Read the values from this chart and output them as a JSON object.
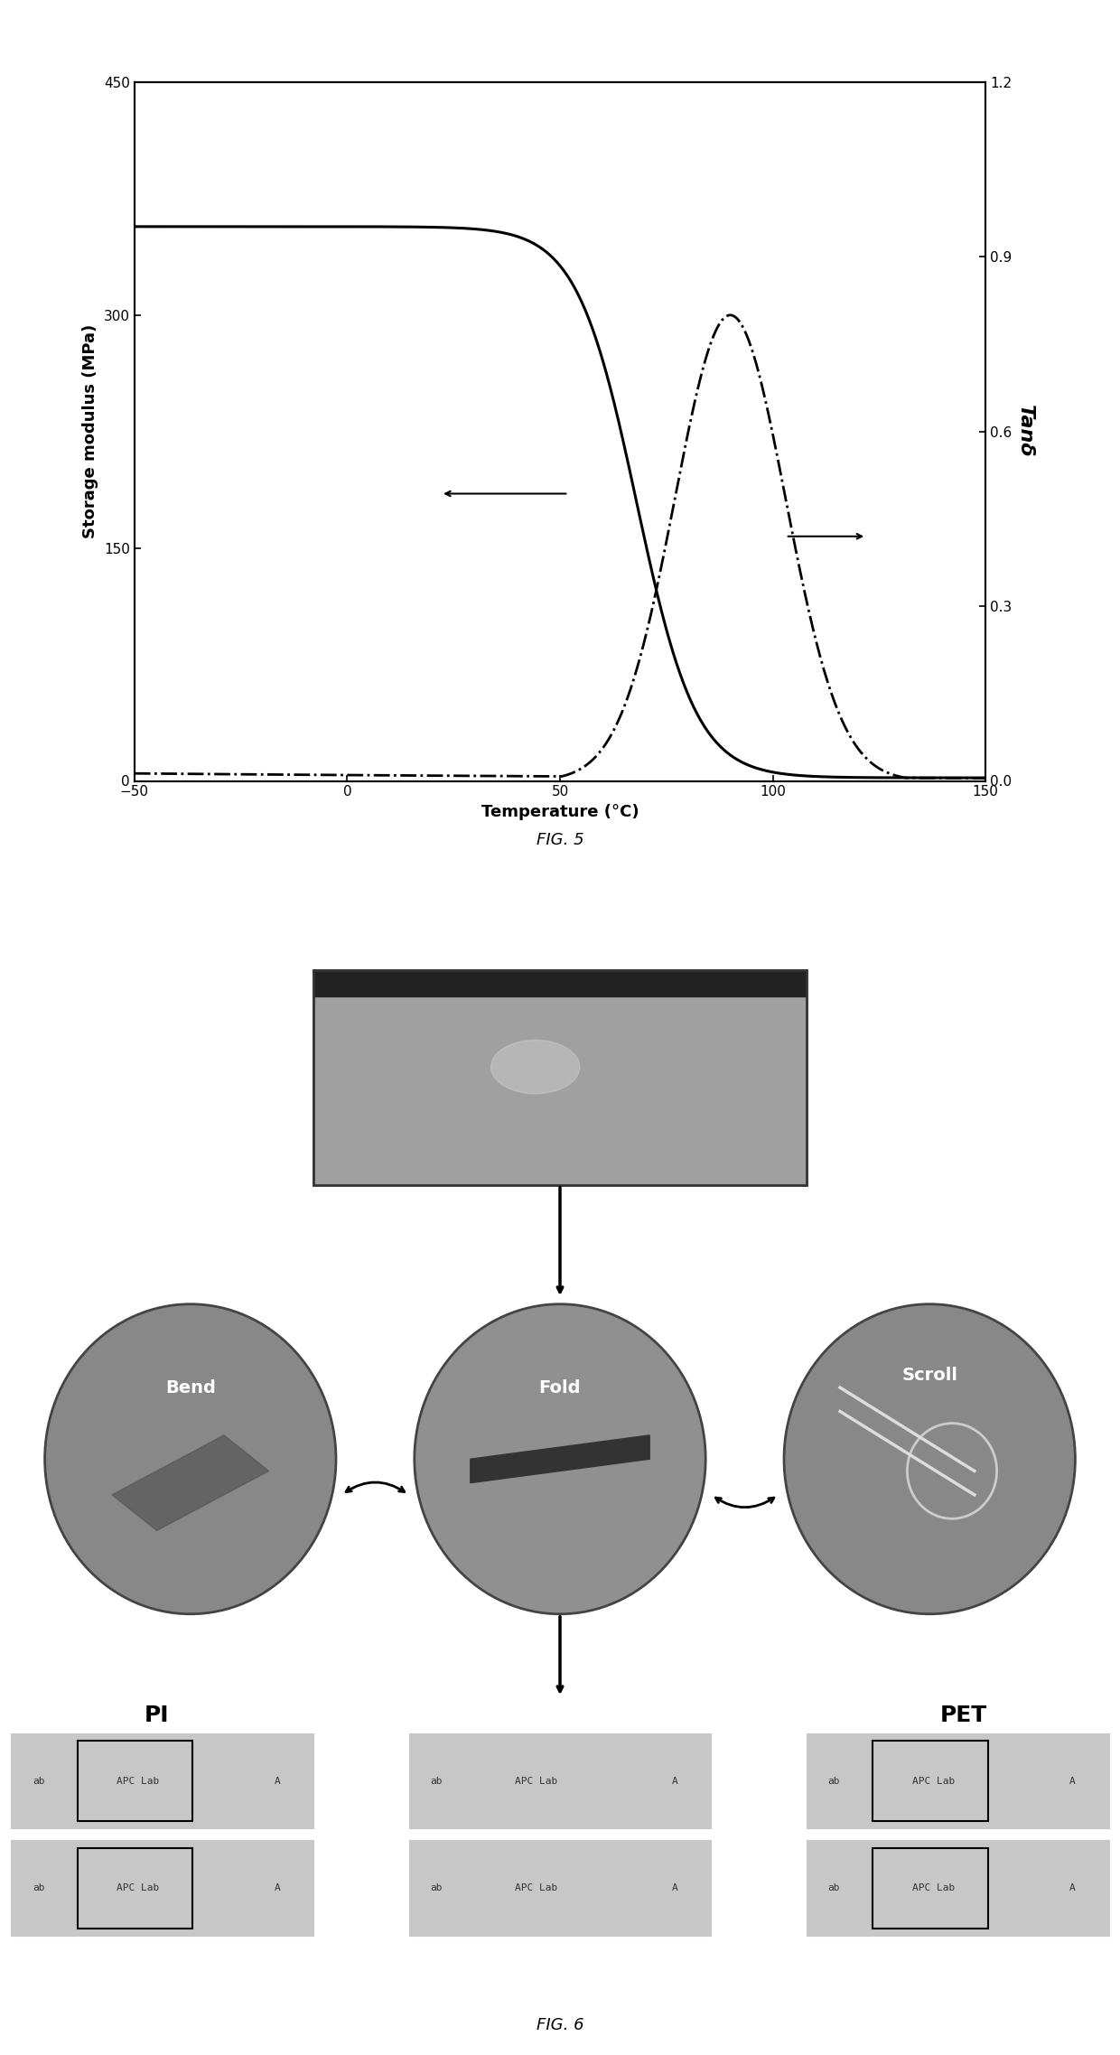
{
  "fig5": {
    "xlabel": "Temperature (°C)",
    "ylabel_left": "Storage modulus (MPa)",
    "ylabel_right": "Tanδ",
    "xlim": [
      -50,
      150
    ],
    "ylim_left": [
      0,
      450
    ],
    "ylim_right": [
      0,
      1.2
    ],
    "xticks": [
      -50,
      0,
      50,
      100,
      150
    ],
    "yticks_left": [
      0,
      150,
      300,
      450
    ],
    "yticks_right": [
      0.0,
      0.3,
      0.6,
      0.9,
      1.2
    ],
    "fontsize_label": 13,
    "fontsize_tick": 11,
    "caption": "FIG. 5"
  },
  "fig6": {
    "caption": "FIG. 6",
    "bend_label": "Bend",
    "fold_label": "Fold",
    "scroll_label": "Scroll",
    "pi_label": "PI",
    "pet_label": "PET",
    "panel_texts_left": [
      "ab",
      "APC Lab",
      "A"
    ],
    "panel_texts_mid": [
      "ab",
      "APC Lab",
      "A"
    ],
    "panel_texts_right": [
      "ab",
      "APC Lab",
      "A"
    ]
  }
}
